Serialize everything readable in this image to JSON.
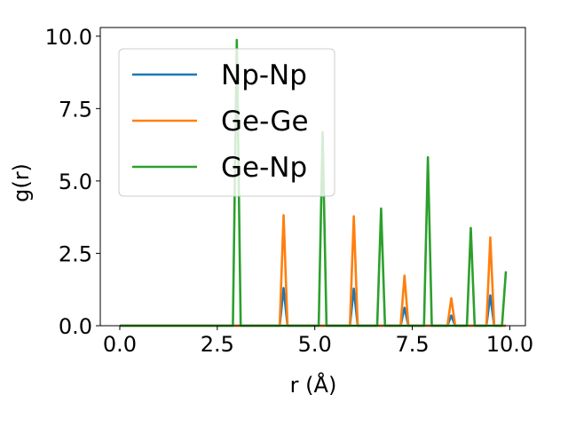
{
  "chart_data": {
    "type": "line",
    "title": "",
    "xlabel": "r (Å)",
    "ylabel": "g(r)",
    "xlim": [
      -0.5,
      10.4
    ],
    "ylim": [
      0,
      10.3
    ],
    "xticks": [
      0.0,
      2.5,
      5.0,
      7.5,
      10.0
    ],
    "xtick_labels": [
      "0.0",
      "2.5",
      "5.0",
      "7.5",
      "10.0"
    ],
    "yticks": [
      0.0,
      2.5,
      5.0,
      7.5,
      10.0
    ],
    "ytick_labels": [
      "0.0",
      "2.5",
      "5.0",
      "7.5",
      "10.0"
    ],
    "grid": false,
    "legend_position": "top-left",
    "series": [
      {
        "name": "Np-Np",
        "color": "#1f77b4",
        "peaks": [
          [
            4.2,
            1.3
          ],
          [
            6.0,
            1.28
          ],
          [
            7.3,
            0.62
          ],
          [
            8.5,
            0.35
          ],
          [
            9.5,
            1.05
          ]
        ]
      },
      {
        "name": "Ge-Ge",
        "color": "#ff7f0e",
        "peaks": [
          [
            4.2,
            3.82
          ],
          [
            6.0,
            3.78
          ],
          [
            7.3,
            1.73
          ],
          [
            8.5,
            0.95
          ],
          [
            9.5,
            3.05
          ]
        ]
      },
      {
        "name": "Ge-Np",
        "color": "#2ca02c",
        "peaks": [
          [
            3.0,
            9.87
          ],
          [
            5.2,
            6.68
          ],
          [
            6.7,
            4.05
          ],
          [
            7.9,
            5.82
          ],
          [
            9.0,
            3.38
          ],
          [
            9.9,
            1.88
          ]
        ]
      }
    ],
    "x_start": 0.0,
    "x_end": 9.9,
    "x_step": 0.1
  }
}
